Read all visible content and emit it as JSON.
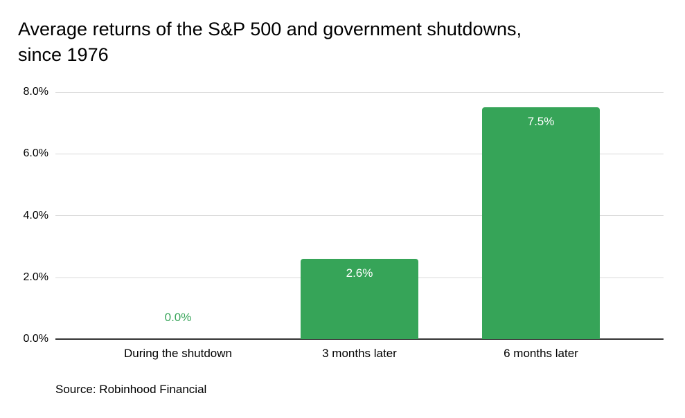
{
  "header": {
    "title_line1": "Average returns of the S&P 500 and government shutdowns,",
    "title_line2": "since 1976"
  },
  "footer": {
    "source": "Source: Robinhood Financial"
  },
  "colors": {
    "bar_green": "#36a458",
    "gridline": "#d9d9d9",
    "axis_baseline": "#333333",
    "text": "#000000",
    "value_label_inside_bar": "#ffffff"
  },
  "chart_data": {
    "type": "bar",
    "title": "Average returns of the S&P 500 and government shutdowns, since 1976",
    "categories": [
      "During the shutdown",
      "3 months later",
      "6 months later"
    ],
    "values": [
      0.0,
      2.6,
      7.5
    ],
    "value_labels": [
      "0.0%",
      "2.6%",
      "7.5%"
    ],
    "y_ticks": [
      "8.0%",
      "6.0%",
      "4.0%",
      "2.0%",
      "0.0%"
    ],
    "ylim": [
      0,
      8
    ],
    "xlabel": "",
    "ylabel": "",
    "grid": "horizontal",
    "legend": "none",
    "bar_color": "#36a458",
    "source": "Source: Robinhood Financial"
  }
}
